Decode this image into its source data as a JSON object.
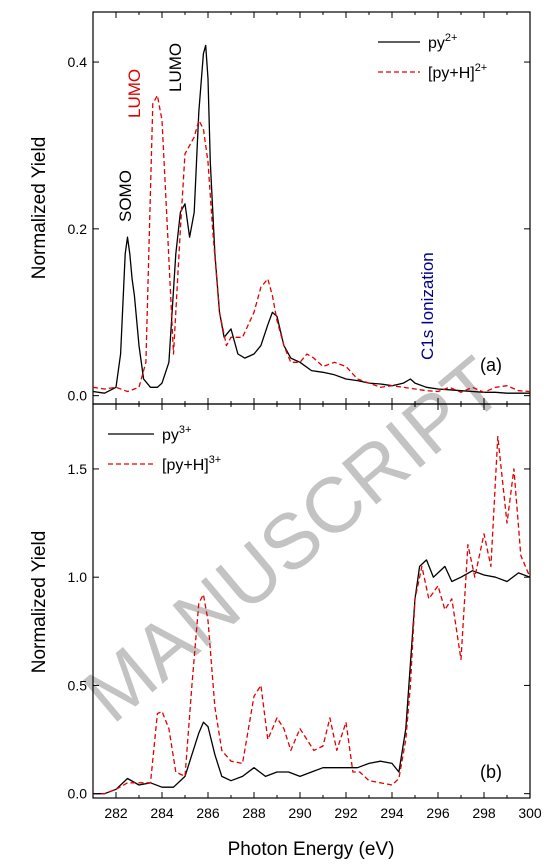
{
  "watermark": "MANUSCRIPT",
  "shared_xlabel": "Photon Energy (eV)",
  "x_ticks": [
    "282",
    "284",
    "286",
    "288",
    "290",
    "292",
    "294",
    "296",
    "298",
    "300"
  ],
  "colors": {
    "series1": "#000000",
    "series2": "#e00000",
    "lumo_red": "#e00000",
    "c1s": "#00008b"
  },
  "chart_data": [
    {
      "type": "line",
      "panel_label": "(a)",
      "ylabel": "Normalized Yield",
      "xlim": [
        281,
        300
      ],
      "ylim": [
        -0.01,
        0.46
      ],
      "y_ticks": [
        "0.0",
        "0.2",
        "0.4"
      ],
      "y_tick_values": [
        0.0,
        0.2,
        0.4
      ],
      "legend": {
        "position": "top-right",
        "entries": [
          {
            "base": "py",
            "sup": "2+"
          },
          {
            "base": "[py+H]",
            "sup": "2+"
          }
        ]
      },
      "annotations": [
        "SOMO",
        "LUMO",
        "LUMO",
        "C1s Ionization"
      ],
      "series": [
        {
          "name": "py2+",
          "style": "solid",
          "x": [
            281,
            281.5,
            282,
            282.2,
            282.4,
            282.5,
            282.6,
            282.7,
            282.8,
            283,
            283.2,
            283.5,
            283.8,
            284,
            284.3,
            284.6,
            284.8,
            285,
            285.2,
            285.4,
            285.6,
            285.8,
            285.9,
            286,
            286.1,
            286.3,
            286.5,
            286.7,
            287,
            287.3,
            287.6,
            288,
            288.3,
            288.6,
            288.8,
            289,
            289.3,
            289.6,
            290,
            290.5,
            291,
            291.5,
            292,
            292.5,
            293,
            293.5,
            294,
            294.5,
            294.8,
            295,
            295.5,
            296,
            296.5,
            297,
            297.5,
            298,
            298.5,
            299,
            299.5,
            300
          ],
          "y": [
            0.005,
            0.003,
            0.01,
            0.05,
            0.17,
            0.19,
            0.17,
            0.14,
            0.12,
            0.06,
            0.02,
            0.01,
            0.01,
            0.015,
            0.04,
            0.17,
            0.22,
            0.23,
            0.19,
            0.22,
            0.34,
            0.41,
            0.42,
            0.38,
            0.28,
            0.17,
            0.1,
            0.07,
            0.08,
            0.05,
            0.045,
            0.05,
            0.06,
            0.085,
            0.1,
            0.095,
            0.06,
            0.045,
            0.04,
            0.03,
            0.028,
            0.025,
            0.02,
            0.018,
            0.015,
            0.014,
            0.012,
            0.015,
            0.02,
            0.015,
            0.01,
            0.008,
            0.007,
            0.006,
            0.005,
            0.004,
            0.004,
            0.003,
            0.003,
            0.003
          ]
        },
        {
          "name": "[py+H]2+",
          "style": "dashed",
          "x": [
            281,
            281.5,
            282,
            282.5,
            283,
            283.3,
            283.6,
            283.8,
            284,
            284.2,
            284.5,
            284.8,
            285,
            285.2,
            285.4,
            285.6,
            285.8,
            286,
            286.2,
            286.5,
            286.8,
            287,
            287.5,
            288,
            288.3,
            288.6,
            288.8,
            289,
            289.3,
            289.6,
            290,
            290.3,
            290.6,
            291,
            291.5,
            292,
            292.5,
            293,
            293.5,
            294,
            294.5,
            295,
            295.5,
            296,
            296.5,
            297,
            297.5,
            298,
            298.5,
            299,
            299.5,
            300
          ],
          "y": [
            0.01,
            0.008,
            0.01,
            0.005,
            0.01,
            0.04,
            0.35,
            0.36,
            0.33,
            0.22,
            0.05,
            0.2,
            0.29,
            0.3,
            0.31,
            0.33,
            0.32,
            0.28,
            0.2,
            0.1,
            0.06,
            0.07,
            0.07,
            0.1,
            0.13,
            0.14,
            0.12,
            0.09,
            0.06,
            0.04,
            0.04,
            0.05,
            0.045,
            0.035,
            0.04,
            0.035,
            0.02,
            0.015,
            0.01,
            0.012,
            0.01,
            0.008,
            0.006,
            0.005,
            0.01,
            0.004,
            0.01,
            0.004,
            0.01,
            0.012,
            0.006,
            0.005
          ]
        }
      ]
    },
    {
      "type": "line",
      "panel_label": "(b)",
      "ylabel": "Normalized Yield",
      "xlim": [
        281,
        300
      ],
      "ylim": [
        -0.02,
        1.8
      ],
      "y_ticks": [
        "0.0",
        "0.5",
        "1.0",
        "1.5"
      ],
      "y_tick_values": [
        0.0,
        0.5,
        1.0,
        1.5
      ],
      "legend": {
        "position": "top-left",
        "entries": [
          {
            "base": "py",
            "sup": "3+"
          },
          {
            "base": "[py+H]",
            "sup": "3+"
          }
        ]
      },
      "series": [
        {
          "name": "py3+",
          "style": "solid",
          "x": [
            281,
            281.5,
            282,
            282.5,
            283,
            283.5,
            284,
            284.5,
            285,
            285.3,
            285.6,
            285.8,
            286,
            286.3,
            286.6,
            287,
            287.5,
            288,
            288.5,
            289,
            289.5,
            290,
            290.5,
            291,
            291.5,
            292,
            292.5,
            293,
            293.5,
            294,
            294.3,
            294.6,
            294.8,
            295,
            295.2,
            295.5,
            295.8,
            296,
            296.3,
            296.6,
            297,
            297.5,
            298,
            298.5,
            299,
            299.5,
            300
          ],
          "y": [
            0.0,
            0.0,
            0.02,
            0.07,
            0.04,
            0.05,
            0.03,
            0.03,
            0.08,
            0.18,
            0.28,
            0.33,
            0.31,
            0.18,
            0.08,
            0.06,
            0.08,
            0.12,
            0.08,
            0.1,
            0.1,
            0.08,
            0.1,
            0.12,
            0.12,
            0.12,
            0.12,
            0.14,
            0.15,
            0.14,
            0.1,
            0.3,
            0.6,
            0.9,
            1.05,
            1.08,
            1.0,
            1.02,
            1.05,
            0.98,
            1.0,
            1.03,
            1.01,
            1.0,
            0.98,
            1.02,
            1.0
          ]
        },
        {
          "name": "[py+H]3+",
          "style": "dashed",
          "x": [
            281,
            281.5,
            282,
            282.5,
            283,
            283.5,
            283.8,
            284,
            284.3,
            284.6,
            285,
            285.3,
            285.6,
            285.8,
            286,
            286.3,
            286.6,
            287,
            287.5,
            288,
            288.3,
            288.6,
            289,
            289.3,
            289.6,
            290,
            290.3,
            290.6,
            291,
            291.3,
            291.6,
            292,
            292.3,
            292.6,
            293,
            293.5,
            294,
            294.3,
            294.6,
            294.8,
            295,
            295.3,
            295.6,
            296,
            296.3,
            296.6,
            297,
            297.3,
            297.6,
            298,
            298.3,
            298.6,
            299,
            299.3,
            299.6,
            300
          ],
          "y": [
            0.0,
            0.0,
            0.02,
            0.05,
            0.05,
            0.05,
            0.37,
            0.38,
            0.3,
            0.1,
            0.08,
            0.5,
            0.88,
            0.92,
            0.8,
            0.4,
            0.2,
            0.15,
            0.14,
            0.45,
            0.5,
            0.25,
            0.35,
            0.3,
            0.2,
            0.3,
            0.25,
            0.2,
            0.22,
            0.35,
            0.2,
            0.33,
            0.1,
            0.1,
            0.06,
            0.05,
            0.04,
            0.07,
            0.25,
            0.5,
            0.9,
            1.05,
            0.9,
            0.96,
            0.85,
            0.9,
            0.62,
            1.15,
            1.0,
            1.2,
            1.05,
            1.65,
            1.25,
            1.5,
            1.1,
            1.0
          ]
        }
      ]
    }
  ]
}
